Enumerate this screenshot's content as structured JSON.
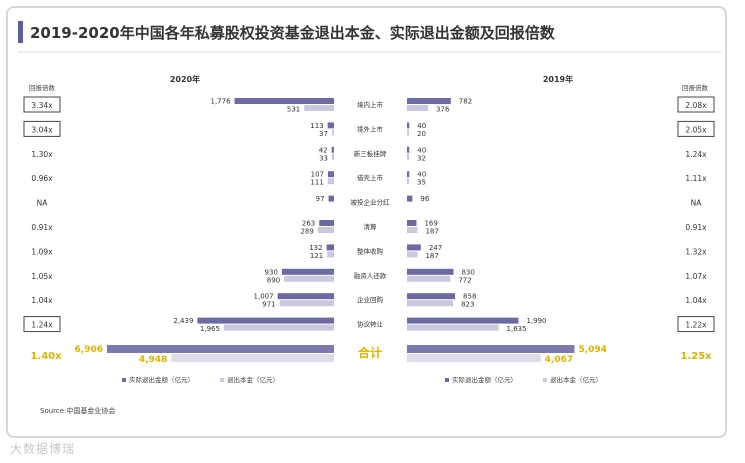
{
  "chart_data": {
    "type": "bar",
    "title": "2019-2020年中国各年私募股权投资基金退出本金、实际退出金额及回报倍数",
    "colors": {
      "actual": "#6b6aa1",
      "principal": "#c9c9de",
      "total_actual": "#7b7aae",
      "total_principal": "#dcdcea",
      "highlight": "#d8b400",
      "title_bar": "#5d5d99"
    },
    "multiple_header": "回报倍数",
    "categories": [
      "境内上市",
      "境外上市",
      "新三板挂牌",
      "借壳上市",
      "被投企业分红",
      "清算",
      "整体收购",
      "融资人还款",
      "企业回购",
      "协议转让"
    ],
    "total_label": "合计",
    "panels": [
      {
        "year_label": "2020年",
        "actual": [
          1776,
          113,
          42,
          107,
          97,
          263,
          132,
          930,
          1007,
          2439
        ],
        "principal": [
          531,
          37,
          33,
          111,
          null,
          289,
          121,
          890,
          971,
          1965
        ],
        "actual_labels": [
          "1,776",
          "113",
          "42",
          "107",
          "97",
          "263",
          "132",
          "930",
          "1,007",
          "2,439"
        ],
        "principal_labels": [
          "531",
          "37",
          "33",
          "111",
          "",
          "289",
          "121",
          "890",
          "971",
          "1,965"
        ],
        "multiples": [
          "3.34x",
          "3.04x",
          "1.30x",
          "0.96x",
          "NA",
          "0.91x",
          "1.09x",
          "1.05x",
          "1.04x",
          "1.24x"
        ],
        "boxed": [
          0,
          1,
          9
        ],
        "total_actual": 6906,
        "total_principal": 4948,
        "total_actual_label": "6,906",
        "total_principal_label": "4,948",
        "total_multiple": "1.40x"
      },
      {
        "year_label": "2019年",
        "actual": [
          782,
          40,
          40,
          40,
          96,
          169,
          247,
          830,
          858,
          1990
        ],
        "principal": [
          376,
          20,
          32,
          35,
          null,
          187,
          187,
          772,
          823,
          1635
        ],
        "actual_labels": [
          "782",
          "40",
          "40",
          "40",
          "96",
          "169",
          "247",
          "830",
          "858",
          "1,990"
        ],
        "principal_labels": [
          "376",
          "20",
          "32",
          "35",
          "",
          "187",
          "187",
          "772",
          "823",
          "1,635"
        ],
        "multiples": [
          "2.08x",
          "2.05x",
          "1.24x",
          "1.11x",
          "NA",
          "0.91x",
          "1.32x",
          "1.07x",
          "1.04x",
          "1.22x"
        ],
        "boxed": [
          0,
          1,
          9
        ],
        "total_actual": 5094,
        "total_principal": 4067,
        "total_actual_label": "5,094",
        "total_principal_label": "4,067",
        "total_multiple": "1.25x"
      }
    ],
    "legend": {
      "position": "bottom",
      "actual": "实际退出金额（亿元）",
      "principal": "退出本金（亿元）"
    },
    "source": "Source:中国基金业协会"
  },
  "watermark": "大数据博瑞"
}
